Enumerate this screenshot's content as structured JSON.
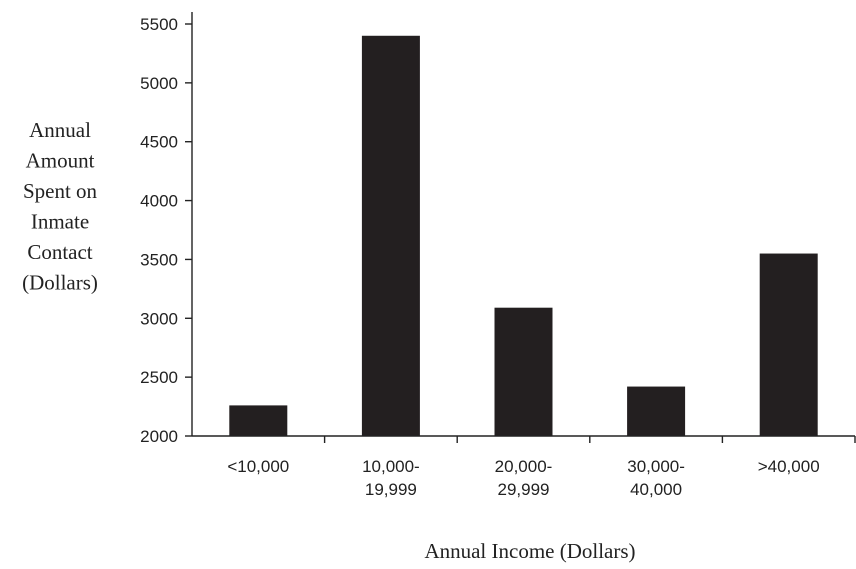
{
  "chart_data": {
    "type": "bar",
    "title": "",
    "ylabel_lines": [
      "Annual",
      "Amount",
      "Spent on",
      "Inmate",
      "Contact",
      "(Dollars)"
    ],
    "xlabel": "Annual Income (Dollars)",
    "categories": [
      [
        "<10,000"
      ],
      [
        "10,000-",
        "19,999"
      ],
      [
        "20,000-",
        "29,999"
      ],
      [
        "30,000-",
        "40,000"
      ],
      [
        ">40,000"
      ]
    ],
    "values": [
      2260,
      5400,
      3090,
      2420,
      3550
    ],
    "ylim": [
      2000,
      5500
    ],
    "yticks": [
      2000,
      2500,
      3000,
      3500,
      4000,
      4500,
      5000,
      5500
    ],
    "grid": false,
    "bar_color": "#231f20"
  }
}
